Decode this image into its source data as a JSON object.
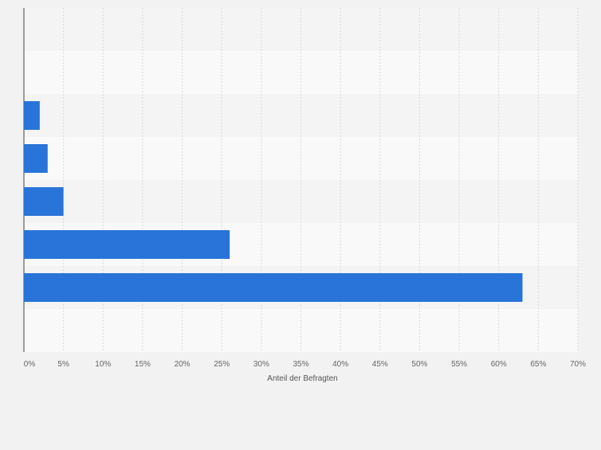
{
  "chart_data": {
    "type": "bar",
    "orientation": "horizontal",
    "categories": [
      "",
      "",
      "",
      "",
      "",
      "",
      ""
    ],
    "values": [
      null,
      null,
      2,
      3,
      5,
      26,
      63
    ],
    "title": "",
    "xlabel": "Anteil der Befragten",
    "ylabel": "",
    "xlim": [
      0,
      70
    ],
    "x_ticks": [
      "0%",
      "5%",
      "10%",
      "15%",
      "20%",
      "25%",
      "30%",
      "35%",
      "40%",
      "45%",
      "50%",
      "55%",
      "60%",
      "65%",
      "70%"
    ],
    "grid": true,
    "bar_color": "#2874d9",
    "band_colors": [
      "#f4f4f4",
      "#f9f9f9"
    ]
  }
}
